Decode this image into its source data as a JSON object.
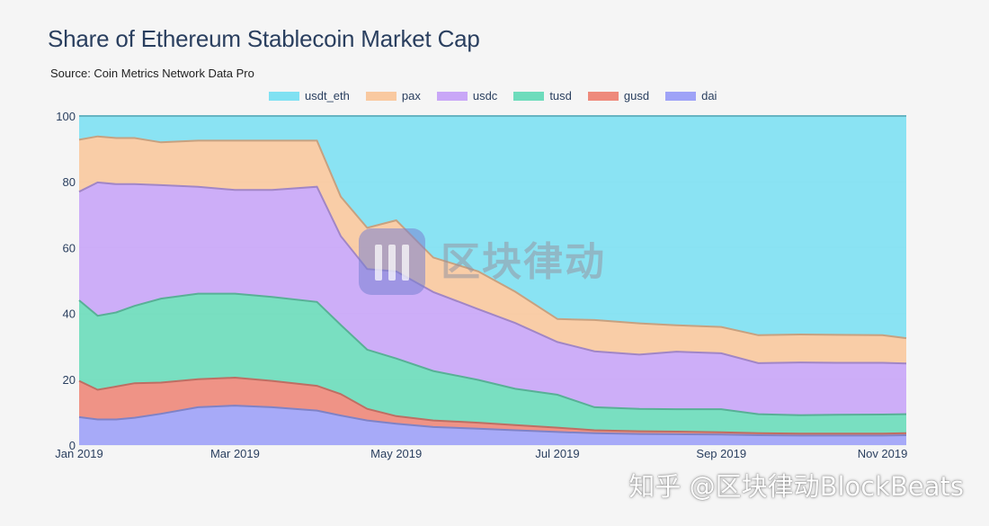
{
  "header": {
    "title": "Share of Ethereum Stablecoin Market Cap",
    "subtitle": "Source: Coin Metrics Network Data Pro"
  },
  "watermark": {
    "text": "区块律动",
    "credit": "知乎 @区块律动BlockBeats"
  },
  "chart_data": {
    "type": "area",
    "stacked": true,
    "title": "Share of Ethereum Stablecoin Market Cap",
    "subtitle": "Source: Coin Metrics Network Data Pro",
    "xlabel": "",
    "ylabel": "",
    "xlim": [
      "2019-01-01",
      "2019-11-10"
    ],
    "ylim": [
      0,
      100
    ],
    "x_ticks": [
      "Jan 2019",
      "Mar 2019",
      "May 2019",
      "Jul 2019",
      "Sep 2019",
      "Nov 2019"
    ],
    "y_ticks": [
      0,
      20,
      40,
      60,
      80,
      100
    ],
    "legend_position": "top",
    "x": [
      "2019-01-01",
      "2019-01-08",
      "2019-01-15",
      "2019-01-22",
      "2019-02-01",
      "2019-02-15",
      "2019-03-01",
      "2019-03-15",
      "2019-04-01",
      "2019-04-10",
      "2019-04-20",
      "2019-05-01",
      "2019-05-15",
      "2019-06-01",
      "2019-06-15",
      "2019-07-01",
      "2019-07-15",
      "2019-08-01",
      "2019-08-15",
      "2019-09-01",
      "2019-09-15",
      "2019-10-01",
      "2019-10-15",
      "2019-11-01",
      "2019-11-10"
    ],
    "series": [
      {
        "name": "dai",
        "color": "#9fa3f7",
        "values": [
          8.5,
          7.8,
          7.8,
          8.3,
          9.5,
          11.5,
          12.0,
          11.5,
          10.5,
          9.0,
          7.5,
          6.5,
          5.5,
          5.0,
          4.5,
          4.0,
          3.6,
          3.4,
          3.3,
          3.2,
          3.0,
          2.9,
          2.9,
          2.9,
          3.0
        ]
      },
      {
        "name": "gusd",
        "color": "#ee8a7c",
        "values": [
          11.0,
          9.0,
          10.0,
          10.5,
          9.5,
          8.5,
          8.5,
          8.0,
          7.5,
          6.5,
          3.5,
          2.3,
          2.0,
          1.8,
          1.6,
          1.3,
          0.9,
          0.8,
          0.8,
          0.7,
          0.6,
          0.6,
          0.6,
          0.6,
          0.6
        ]
      },
      {
        "name": "tusd",
        "color": "#6edcbc",
        "values": [
          24.5,
          22.5,
          22.5,
          23.5,
          25.5,
          26.0,
          25.5,
          25.5,
          25.5,
          21.0,
          18.0,
          17.5,
          15.0,
          13.0,
          11.0,
          10.0,
          7.0,
          6.8,
          6.8,
          7.0,
          5.8,
          5.6,
          5.7,
          5.8,
          5.8
        ]
      },
      {
        "name": "usdc",
        "color": "#c9a7f7",
        "values": [
          33.0,
          40.5,
          39.0,
          37.0,
          34.5,
          32.5,
          31.5,
          32.5,
          35.0,
          27.0,
          24.5,
          26.5,
          24.0,
          21.5,
          20.0,
          16.0,
          17.0,
          16.5,
          17.5,
          17.0,
          15.5,
          16.0,
          15.8,
          15.7,
          15.4
        ]
      },
      {
        "name": "pax",
        "color": "#f9c9a0",
        "values": [
          15.8,
          14.0,
          14.0,
          14.0,
          13.0,
          14.0,
          15.0,
          15.0,
          14.0,
          12.0,
          12.5,
          15.5,
          10.5,
          11.5,
          9.5,
          7.0,
          9.5,
          9.5,
          8.0,
          8.0,
          8.5,
          8.5,
          8.5,
          8.4,
          7.7
        ]
      },
      {
        "name": "usdt_eth",
        "color": "#80e1f2",
        "values": [
          7.2,
          6.2,
          6.7,
          6.7,
          8.0,
          7.5,
          7.5,
          7.5,
          7.5,
          24.5,
          34.0,
          31.7,
          43.0,
          47.2,
          53.4,
          61.7,
          62.0,
          63.0,
          63.6,
          64.1,
          66.6,
          66.4,
          66.5,
          66.6,
          67.5
        ]
      }
    ]
  }
}
